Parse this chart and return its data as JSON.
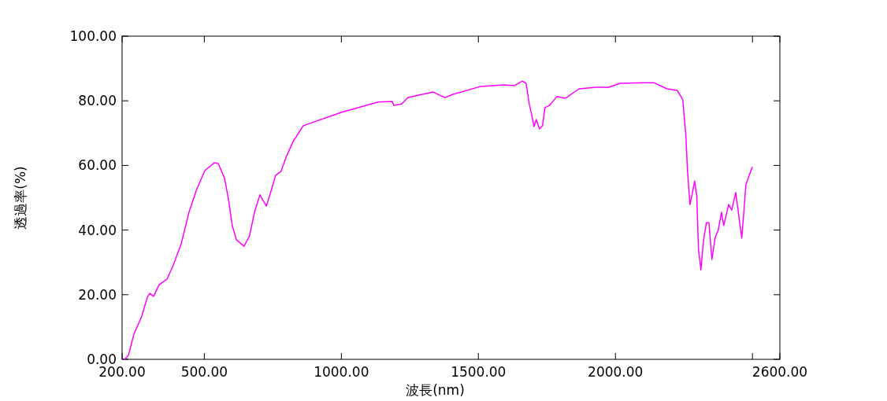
{
  "chart_data": {
    "type": "line",
    "xlabel": "波長(nm)",
    "ylabel": "透過率(%)",
    "xlim": [
      200,
      2600
    ],
    "ylim": [
      0,
      100
    ],
    "xticks": [
      {
        "value": 200,
        "label": "200.00"
      },
      {
        "value": 500,
        "label": "500.00"
      },
      {
        "value": 1000,
        "label": "1000.00"
      },
      {
        "value": 1500,
        "label": "1500.00"
      },
      {
        "value": 2000,
        "label": "2000.00"
      },
      {
        "value": 2500,
        "label": null
      },
      {
        "value": 2600,
        "label": "2600.00"
      }
    ],
    "yticks": [
      {
        "value": 0,
        "label": "0.00"
      },
      {
        "value": 20,
        "label": "20.00"
      },
      {
        "value": 40,
        "label": "40.00"
      },
      {
        "value": 60,
        "label": "60.00"
      },
      {
        "value": 80,
        "label": "80.00"
      },
      {
        "value": 100,
        "label": "100.00"
      }
    ],
    "grid": false,
    "marker": "none",
    "line_style": "solid",
    "series": [
      {
        "color": "#ff00ff",
        "x": [
          209,
          223,
          243,
          272,
          292,
          301,
          315,
          335,
          364,
          387,
          416,
          444,
          473,
          502,
          536,
          551,
          574,
          588,
          602,
          617,
          645,
          665,
          683,
          703,
          726,
          740,
          760,
          780,
          798,
          824,
          861,
          999,
          1134,
          1186,
          1191,
          1220,
          1243,
          1335,
          1378,
          1407,
          1507,
          1594,
          1631,
          1660,
          1674,
          1686,
          1694,
          1703,
          1711,
          1723,
          1734,
          1743,
          1760,
          1786,
          1818,
          1867,
          1930,
          1976,
          2016,
          2102,
          2140,
          2189,
          2226,
          2246,
          2249,
          2257,
          2263,
          2272,
          2280,
          2289,
          2297,
          2303,
          2312,
          2321,
          2332,
          2341,
          2352,
          2364,
          2375,
          2387,
          2395,
          2413,
          2424,
          2439,
          2453,
          2461,
          2470,
          2476,
          2499
        ],
        "values": [
          0,
          1.2,
          7.8,
          13.4,
          19.2,
          20.4,
          19.5,
          23.1,
          24.8,
          29.2,
          35.8,
          45.5,
          52.8,
          58.4,
          60.8,
          60.6,
          56,
          49.6,
          41.4,
          37,
          35,
          38.2,
          45.5,
          50.9,
          47.4,
          51.1,
          56.9,
          58.2,
          62.5,
          67.4,
          72.3,
          76.4,
          79.6,
          79.8,
          78.6,
          79,
          81,
          82.7,
          81,
          82,
          84.4,
          84.9,
          84.7,
          86.1,
          85.4,
          78.8,
          75.9,
          72,
          74.2,
          71.3,
          72.3,
          77.9,
          78.6,
          81.3,
          80.8,
          83.7,
          84.2,
          84.2,
          85.4,
          85.6,
          85.6,
          83.7,
          83.2,
          80.3,
          77.1,
          69.3,
          58.4,
          47.9,
          51.1,
          55.2,
          50.4,
          34.1,
          27.7,
          36.5,
          42.3,
          42.3,
          30.9,
          37.7,
          39.9,
          45.5,
          41.4,
          47.9,
          46.2,
          51.6,
          42.6,
          37.5,
          47.2,
          54,
          59.4
        ]
      }
    ]
  }
}
